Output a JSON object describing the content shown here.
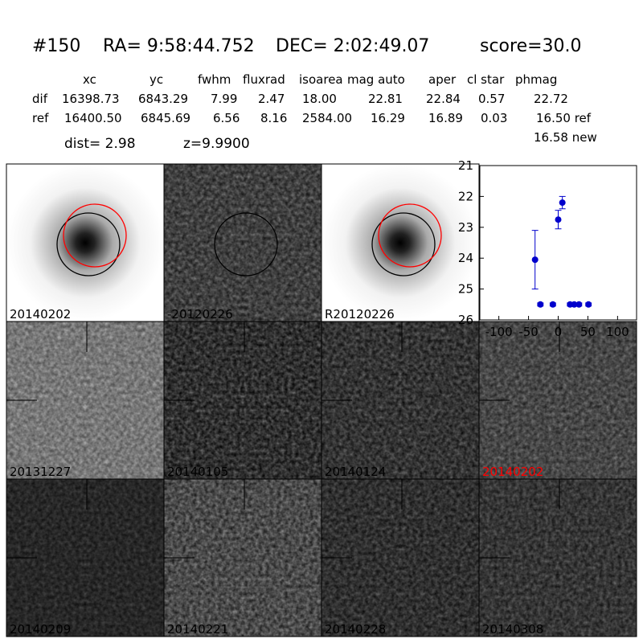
{
  "header": {
    "id": "#150",
    "ra": "RA= 9:58:44.752",
    "dec": "DEC= 2:02:49.07",
    "score": "score=30.0"
  },
  "table": {
    "columns": [
      "xc",
      "yc",
      "fwhm",
      "fluxrad",
      "isoarea",
      "mag auto",
      "aper",
      "cl star",
      "phmag"
    ],
    "rows": [
      [
        "dif",
        "16398.73",
        "6843.29",
        "7.99",
        "2.47",
        "18.00",
        "22.81",
        "22.84",
        "0.57",
        "22.72"
      ],
      [
        "ref",
        "16400.50",
        "6845.69",
        "6.56",
        "8.16",
        "2584.00",
        "16.29",
        "16.89",
        "0.03",
        "16.50 ref"
      ]
    ],
    "extra": "16.58 new"
  },
  "dist": "dist=  2.98",
  "z": "z=9.9900",
  "panels": [
    "20140202",
    "-20120226",
    "R20120226",
    "20131227",
    "20140105",
    "20140124",
    "20140202",
    "20140209",
    "20140221",
    "20140228",
    "20140308"
  ],
  "chart_data": {
    "type": "errorbar",
    "x": [
      -39,
      -30,
      -9,
      0,
      7,
      20,
      27,
      35,
      51
    ],
    "values": [
      24.05,
      25.5,
      25.5,
      22.75,
      22.2,
      25.5,
      25.5,
      25.5,
      25.5
    ],
    "errors": [
      0.95,
      0.05,
      0.05,
      0.3,
      0.2,
      0.05,
      0.05,
      0.05,
      0.05
    ],
    "color": "#0000cc",
    "xlim": [
      -132,
      132
    ],
    "ylim": [
      26,
      21
    ],
    "xticks": [
      -100,
      -50,
      0,
      50,
      100
    ],
    "yticks": [
      21,
      22,
      23,
      24,
      25,
      26
    ]
  }
}
